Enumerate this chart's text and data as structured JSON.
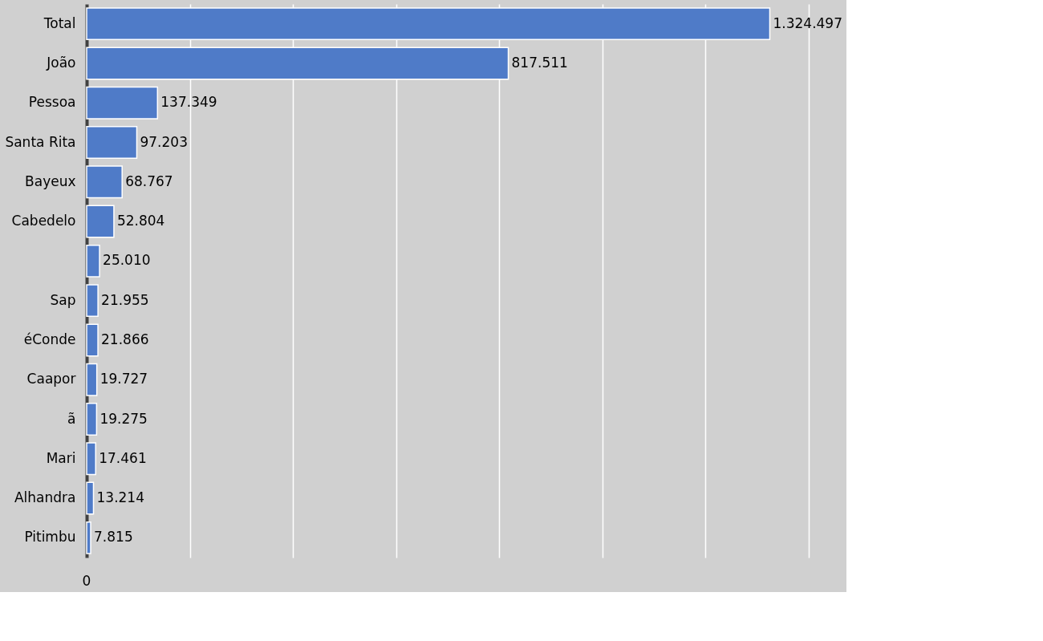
{
  "chart_data": {
    "type": "bar",
    "orientation": "horizontal",
    "categories": [
      "Total",
      "João",
      "Pessoa",
      "Santa Rita",
      "Bayeux",
      "Cabedelo",
      null,
      "Sap",
      "éConde",
      "Caapor",
      "ã",
      "Mari",
      "Alhandra",
      "Pitimbu"
    ],
    "values": [
      1324497,
      817511,
      137349,
      97203,
      68767,
      52804,
      25010,
      21955,
      21866,
      19727,
      19275,
      17461,
      13214,
      7815
    ],
    "value_labels": [
      "1.324.497",
      "817.511",
      "137.349",
      "97.203",
      "68.767",
      "52.804",
      "25.010",
      "21.955",
      "21.866",
      "19.727",
      "19.275",
      "17.461",
      "13.214",
      "7.815"
    ],
    "color": "#4f7bc8",
    "xlim": [
      0,
      1400000
    ],
    "annotations": [
      "0"
    ],
    "grid": "x"
  }
}
